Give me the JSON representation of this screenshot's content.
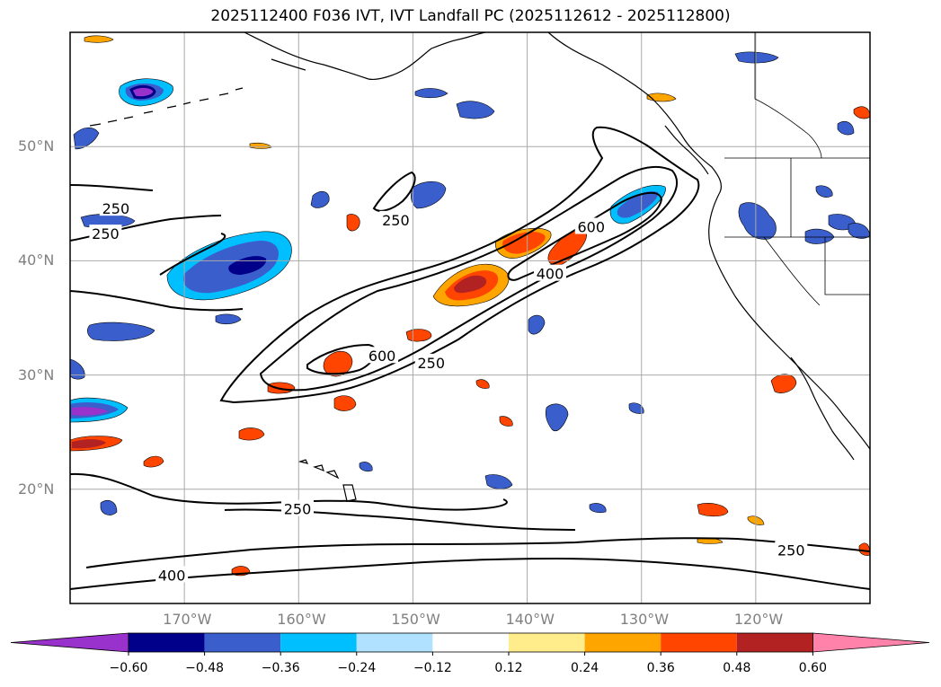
{
  "title": "2025112400 F036 IVT, IVT Landfall PC (2025112612 - 2025112800)",
  "axes": {
    "lat_labels": [
      {
        "text": "50°N",
        "lat": 50
      },
      {
        "text": "40°N",
        "lat": 40
      },
      {
        "text": "30°N",
        "lat": 30
      },
      {
        "text": "20°N",
        "lat": 20
      }
    ],
    "lon_labels": [
      {
        "text": "170°W",
        "lon": -170
      },
      {
        "text": "160°W",
        "lon": -160
      },
      {
        "text": "150°W",
        "lon": -150
      },
      {
        "text": "140°W",
        "lon": -140
      },
      {
        "text": "130°W",
        "lon": -130
      },
      {
        "text": "120°W",
        "lon": -120
      }
    ],
    "lon_range": [
      -180,
      -110
    ],
    "lat_range": [
      10,
      60
    ],
    "grid": true
  },
  "contour_labels": [
    {
      "text": "250",
      "lon": -176,
      "lat": 44.5
    },
    {
      "text": "250",
      "lon": -176.9,
      "lat": 42.3
    },
    {
      "text": "250",
      "lon": -151.5,
      "lat": 43.5
    },
    {
      "text": "600",
      "lon": -134.4,
      "lat": 42.9
    },
    {
      "text": "400",
      "lon": -138,
      "lat": 38.8
    },
    {
      "text": "600",
      "lon": -152.7,
      "lat": 31.6
    },
    {
      "text": "250",
      "lon": -148.4,
      "lat": 31.0
    },
    {
      "text": "250",
      "lon": -160.1,
      "lat": 18.2
    },
    {
      "text": "400",
      "lon": -171.1,
      "lat": 12.4
    },
    {
      "text": "250",
      "lon": -116.9,
      "lat": 14.6
    }
  ],
  "colorbar": {
    "ticks": [
      "−0.60",
      "−0.48",
      "−0.36",
      "−0.24",
      "−0.12",
      "0.12",
      "0.24",
      "0.36",
      "0.48",
      "0.60"
    ],
    "colors": [
      "#9932cc",
      "#00008b",
      "#3a5fcd",
      "#00bfff",
      "#b0e2ff",
      "#ffffff",
      "#ffec8b",
      "#ffa500",
      "#ff4500",
      "#b22222",
      "#ff82ab"
    ]
  }
}
